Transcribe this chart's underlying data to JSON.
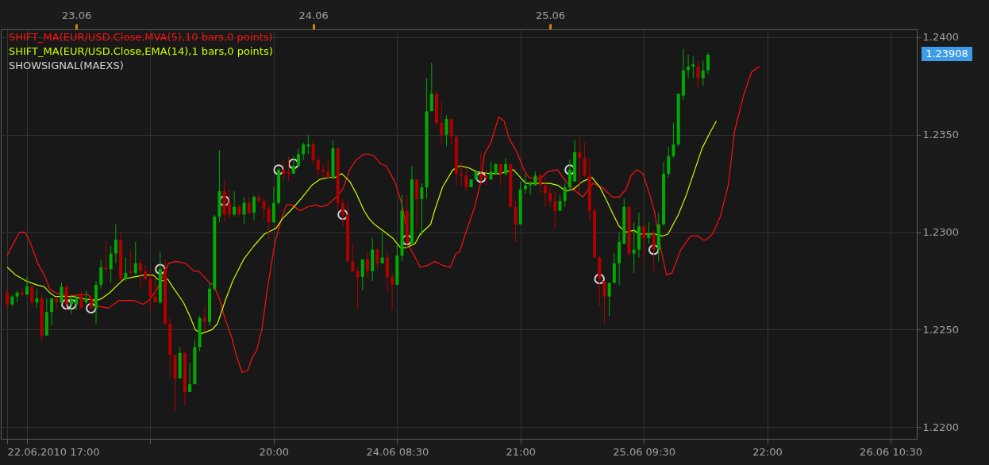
{
  "chart_data": {
    "type": "candlestick",
    "x": [
      "2010-06-22T17:00",
      "2010-06-22T17:30",
      "2010-06-22T18:00",
      "2010-06-22T18:30",
      "2010-06-22T19:00",
      "2010-06-22T19:30",
      "2010-06-22T20:00",
      "2010-06-22T20:30",
      "2010-06-22T21:00",
      "2010-06-22T21:30",
      "2010-06-22T22:00",
      "2010-06-22T22:30",
      "2010-06-22T23:00",
      "2010-06-22T23:30",
      "2010-06-23T00:00",
      "2010-06-23T00:30",
      "2010-06-23T01:00",
      "2010-06-23T01:30",
      "2010-06-23T02:00",
      "2010-06-23T02:30",
      "2010-06-23T03:00",
      "2010-06-23T03:30",
      "2010-06-23T04:00",
      "2010-06-23T04:30",
      "2010-06-23T05:00",
      "2010-06-23T05:30",
      "2010-06-23T06:00",
      "2010-06-23T06:30",
      "2010-06-23T07:00",
      "2010-06-23T07:30",
      "2010-06-23T08:00",
      "2010-06-23T08:30",
      "2010-06-23T09:00",
      "2010-06-23T09:30",
      "2010-06-23T10:00",
      "2010-06-23T10:30",
      "2010-06-23T11:00",
      "2010-06-23T11:30",
      "2010-06-23T12:00",
      "2010-06-23T12:30",
      "2010-06-23T13:00",
      "2010-06-23T13:30",
      "2010-06-23T14:00",
      "2010-06-23T14:30",
      "2010-06-23T15:00",
      "2010-06-23T15:30",
      "2010-06-23T16:00",
      "2010-06-23T16:30",
      "2010-06-23T17:00",
      "2010-06-23T17:30",
      "2010-06-23T18:00",
      "2010-06-23T18:30",
      "2010-06-23T19:00",
      "2010-06-23T19:30",
      "2010-06-23T20:00",
      "2010-06-23T20:30",
      "2010-06-23T21:00",
      "2010-06-23T21:30",
      "2010-06-23T22:00",
      "2010-06-23T22:30",
      "2010-06-23T23:00",
      "2010-06-23T23:30",
      "2010-06-24T00:00",
      "2010-06-24T00:30",
      "2010-06-24T01:00",
      "2010-06-24T01:30",
      "2010-06-24T02:00",
      "2010-06-24T02:30",
      "2010-06-24T03:00",
      "2010-06-24T03:30",
      "2010-06-24T04:00",
      "2010-06-24T04:30",
      "2010-06-24T05:00",
      "2010-06-24T05:30",
      "2010-06-24T06:00",
      "2010-06-24T06:30",
      "2010-06-24T07:00",
      "2010-06-24T07:30",
      "2010-06-24T08:00",
      "2010-06-24T08:30",
      "2010-06-24T09:00",
      "2010-06-24T09:30",
      "2010-06-24T10:00",
      "2010-06-24T10:30",
      "2010-06-24T11:00",
      "2010-06-24T11:30",
      "2010-06-24T12:00",
      "2010-06-24T12:30",
      "2010-06-24T13:00",
      "2010-06-24T13:30",
      "2010-06-24T14:00",
      "2010-06-24T14:30",
      "2010-06-24T15:00",
      "2010-06-24T15:30",
      "2010-06-24T16:00",
      "2010-06-24T16:30",
      "2010-06-24T17:00",
      "2010-06-24T17:30",
      "2010-06-24T18:00",
      "2010-06-24T18:30",
      "2010-06-24T19:00",
      "2010-06-24T19:30",
      "2010-06-24T20:00",
      "2010-06-24T20:30",
      "2010-06-24T21:00",
      "2010-06-24T21:30",
      "2010-06-24T22:00",
      "2010-06-24T22:30",
      "2010-06-24T23:00",
      "2010-06-24T23:30",
      "2010-06-25T00:00",
      "2010-06-25T00:30",
      "2010-06-25T01:00",
      "2010-06-25T01:30",
      "2010-06-25T02:00",
      "2010-06-25T02:30",
      "2010-06-25T03:00",
      "2010-06-25T03:30",
      "2010-06-25T04:00",
      "2010-06-25T04:30",
      "2010-06-25T05:00",
      "2010-06-25T05:30",
      "2010-06-25T06:00",
      "2010-06-25T06:30",
      "2010-06-25T07:00",
      "2010-06-25T07:30",
      "2010-06-25T08:00",
      "2010-06-25T08:30",
      "2010-06-25T09:00",
      "2010-06-25T09:30",
      "2010-06-25T10:00",
      "2010-06-25T10:30",
      "2010-06-25T11:00",
      "2010-06-25T11:30",
      "2010-06-25T12:00",
      "2010-06-25T12:30",
      "2010-06-25T13:00",
      "2010-06-25T13:30",
      "2010-06-25T14:00",
      "2010-06-25T14:30",
      "2010-06-25T15:00",
      "2010-06-25T15:30",
      "2010-06-25T16:00"
    ],
    "ohlc": [
      [
        1.2269,
        1.2271,
        1.2261,
        1.2263
      ],
      [
        1.2263,
        1.2268,
        1.2262,
        1.2267
      ],
      [
        1.2267,
        1.227,
        1.2264,
        1.2269
      ],
      [
        1.2269,
        1.2271,
        1.2267,
        1.2268
      ],
      [
        1.2268,
        1.2277,
        1.2268,
        1.2272
      ],
      [
        1.2272,
        1.2273,
        1.2262,
        1.2264
      ],
      [
        1.2264,
        1.2271,
        1.2261,
        1.2266
      ],
      [
        1.2266,
        1.2268,
        1.2244,
        1.2247
      ],
      [
        1.2247,
        1.2266,
        1.2247,
        1.2259
      ],
      [
        1.2259,
        1.2266,
        1.2252,
        1.2266
      ],
      [
        1.2266,
        1.2267,
        1.226,
        1.2264
      ],
      [
        1.2264,
        1.2274,
        1.2263,
        1.2272
      ],
      [
        1.2272,
        1.2273,
        1.226,
        1.2263
      ],
      [
        1.2263,
        1.2268,
        1.2258,
        1.2266
      ],
      [
        1.2263,
        1.2267,
        1.226,
        1.2266
      ],
      [
        1.2268,
        1.227,
        1.2261,
        1.2261
      ],
      [
        1.2264,
        1.227,
        1.2263,
        1.2266
      ],
      [
        1.2266,
        1.2268,
        1.226,
        1.2261
      ],
      [
        1.2261,
        1.2275,
        1.2253,
        1.2273
      ],
      [
        1.2273,
        1.2286,
        1.2271,
        1.2282
      ],
      [
        1.2282,
        1.2295,
        1.2279,
        1.2281
      ],
      [
        1.2281,
        1.2293,
        1.2274,
        1.2289
      ],
      [
        1.2289,
        1.2304,
        1.2284,
        1.2296
      ],
      [
        1.2296,
        1.23,
        1.2275,
        1.2276
      ],
      [
        1.2276,
        1.2287,
        1.2275,
        1.2279
      ],
      [
        1.228,
        1.2291,
        1.2278,
        1.2279
      ],
      [
        1.2279,
        1.2295,
        1.2278,
        1.2284
      ],
      [
        1.2284,
        1.2286,
        1.2271,
        1.228
      ],
      [
        1.228,
        1.2283,
        1.2275,
        1.2276
      ],
      [
        1.2276,
        1.2281,
        1.2259,
        1.2267
      ],
      [
        1.2267,
        1.2277,
        1.2264,
        1.2264
      ],
      [
        1.2264,
        1.229,
        1.2263,
        1.2281
      ],
      [
        1.2281,
        1.2286,
        1.2252,
        1.2253
      ],
      [
        1.2253,
        1.2256,
        1.2225,
        1.2237
      ],
      [
        1.2237,
        1.2237,
        1.2208,
        1.2225
      ],
      [
        1.2225,
        1.2241,
        1.2225,
        1.2238
      ],
      [
        1.2238,
        1.2239,
        1.2211,
        1.2218
      ],
      [
        1.2218,
        1.2233,
        1.2218,
        1.2222
      ],
      [
        1.2222,
        1.2245,
        1.2222,
        1.2241
      ],
      [
        1.2241,
        1.2257,
        1.2239,
        1.2256
      ],
      [
        1.2256,
        1.2262,
        1.2249,
        1.2254
      ],
      [
        1.2254,
        1.2274,
        1.2252,
        1.2271
      ],
      [
        1.2271,
        1.2309,
        1.227,
        1.2308
      ],
      [
        1.2308,
        1.2342,
        1.2305,
        1.2321
      ],
      [
        1.2321,
        1.2327,
        1.2305,
        1.2309
      ],
      [
        1.2315,
        1.2322,
        1.2307,
        1.2309
      ],
      [
        1.2309,
        1.2321,
        1.2308,
        1.2313
      ],
      [
        1.2313,
        1.2314,
        1.2308,
        1.2309
      ],
      [
        1.2309,
        1.2318,
        1.2304,
        1.2315
      ],
      [
        1.2315,
        1.2318,
        1.2309,
        1.231
      ],
      [
        1.231,
        1.2319,
        1.2306,
        1.2318
      ],
      [
        1.2318,
        1.2319,
        1.2315,
        1.2316
      ],
      [
        1.2316,
        1.2317,
        1.2307,
        1.2312
      ],
      [
        1.2312,
        1.2314,
        1.2296,
        1.2305
      ],
      [
        1.2305,
        1.2323,
        1.2305,
        1.2315
      ],
      [
        1.2315,
        1.2333,
        1.2314,
        1.2332
      ],
      [
        1.2332,
        1.2337,
        1.2326,
        1.233
      ],
      [
        1.2331,
        1.2339,
        1.2326,
        1.233
      ],
      [
        1.233,
        1.2339,
        1.233,
        1.2334
      ],
      [
        1.2334,
        1.2343,
        1.2334,
        1.234
      ],
      [
        1.234,
        1.2346,
        1.2337,
        1.2345
      ],
      [
        1.2344,
        1.235,
        1.234,
        1.2345
      ],
      [
        1.2345,
        1.2347,
        1.2335,
        1.2337
      ],
      [
        1.2337,
        1.2339,
        1.2328,
        1.2332
      ],
      [
        1.2332,
        1.2335,
        1.2328,
        1.2331
      ],
      [
        1.2331,
        1.2337,
        1.2328,
        1.2328
      ],
      [
        1.2328,
        1.2347,
        1.2327,
        1.2343
      ],
      [
        1.2343,
        1.2343,
        1.2311,
        1.2315
      ],
      [
        1.2315,
        1.2317,
        1.2303,
        1.2309
      ],
      [
        1.2309,
        1.2315,
        1.2285,
        1.2285
      ],
      [
        1.2285,
        1.2294,
        1.228,
        1.228
      ],
      [
        1.228,
        1.2282,
        1.2261,
        1.2277
      ],
      [
        1.2277,
        1.2286,
        1.227,
        1.2286
      ],
      [
        1.2286,
        1.229,
        1.2276,
        1.228
      ],
      [
        1.228,
        1.2297,
        1.2275,
        1.2291
      ],
      [
        1.2291,
        1.2292,
        1.2281,
        1.2284
      ],
      [
        1.2284,
        1.23,
        1.2284,
        1.2287
      ],
      [
        1.2287,
        1.229,
        1.2269,
        1.2277
      ],
      [
        1.2277,
        1.2279,
        1.226,
        1.2273
      ],
      [
        1.2273,
        1.2294,
        1.2273,
        1.2288
      ],
      [
        1.2288,
        1.2319,
        1.2285,
        1.2311
      ],
      [
        1.2311,
        1.2319,
        1.2292,
        1.2295
      ],
      [
        1.2294,
        1.2334,
        1.2294,
        1.2327
      ],
      [
        1.2327,
        1.2327,
        1.2302,
        1.2317
      ],
      [
        1.2317,
        1.2325,
        1.2298,
        1.2323
      ],
      [
        1.2323,
        1.2379,
        1.2317,
        1.2362
      ],
      [
        1.2362,
        1.2387,
        1.2362,
        1.2371
      ],
      [
        1.2371,
        1.2373,
        1.2355,
        1.2356
      ],
      [
        1.2356,
        1.2367,
        1.2345,
        1.235
      ],
      [
        1.235,
        1.236,
        1.2344,
        1.2358
      ],
      [
        1.2358,
        1.2358,
        1.2345,
        1.2349
      ],
      [
        1.2349,
        1.2349,
        1.2324,
        1.233
      ],
      [
        1.233,
        1.2336,
        1.2324,
        1.2329
      ],
      [
        1.2329,
        1.2333,
        1.2321,
        1.2323
      ],
      [
        1.2323,
        1.2327,
        1.2323,
        1.2327
      ],
      [
        1.2327,
        1.2332,
        1.2327,
        1.2331
      ],
      [
        1.233,
        1.2341,
        1.2324,
        1.2327
      ],
      [
        1.2329,
        1.2332,
        1.2324,
        1.2328
      ],
      [
        1.2327,
        1.2336,
        1.2327,
        1.2331
      ],
      [
        1.233,
        1.2335,
        1.233,
        1.2335
      ],
      [
        1.2335,
        1.2335,
        1.2324,
        1.233
      ],
      [
        1.233,
        1.2338,
        1.2329,
        1.2335
      ],
      [
        1.2335,
        1.2335,
        1.2312,
        1.2313
      ],
      [
        1.2313,
        1.2316,
        1.2295,
        1.2304
      ],
      [
        1.2304,
        1.2326,
        1.2304,
        1.2322
      ],
      [
        1.2322,
        1.233,
        1.232,
        1.2324
      ],
      [
        1.2324,
        1.2326,
        1.2319,
        1.2325
      ],
      [
        1.2324,
        1.2331,
        1.2324,
        1.2329
      ],
      [
        1.2329,
        1.233,
        1.232,
        1.2324
      ],
      [
        1.2324,
        1.2328,
        1.2313,
        1.232
      ],
      [
        1.232,
        1.2324,
        1.2313,
        1.2316
      ],
      [
        1.2316,
        1.2321,
        1.2302,
        1.2311
      ],
      [
        1.2311,
        1.2319,
        1.2311,
        1.2316
      ],
      [
        1.2316,
        1.2325,
        1.2313,
        1.2323
      ],
      [
        1.2323,
        1.2337,
        1.2322,
        1.2332
      ],
      [
        1.2326,
        1.2347,
        1.2326,
        1.2341
      ],
      [
        1.2341,
        1.2349,
        1.2319,
        1.2338
      ],
      [
        1.2338,
        1.2346,
        1.2328,
        1.2329
      ],
      [
        1.2329,
        1.2338,
        1.2306,
        1.2311
      ],
      [
        1.2311,
        1.2313,
        1.2287,
        1.2287
      ],
      [
        1.2287,
        1.2288,
        1.2262,
        1.2276
      ],
      [
        1.2275,
        1.2275,
        1.2253,
        1.2267
      ],
      [
        1.2267,
        1.2274,
        1.2257,
        1.2274
      ],
      [
        1.2274,
        1.2289,
        1.2274,
        1.2284
      ],
      [
        1.2284,
        1.23,
        1.2273,
        1.2295
      ],
      [
        1.2294,
        1.2317,
        1.2294,
        1.2313
      ],
      [
        1.2313,
        1.2313,
        1.2288,
        1.2289
      ],
      [
        1.2289,
        1.2305,
        1.2279,
        1.2291
      ],
      [
        1.2291,
        1.231,
        1.2287,
        1.2303
      ],
      [
        1.2303,
        1.2304,
        1.2286,
        1.2297
      ],
      [
        1.2297,
        1.2305,
        1.2294,
        1.2299
      ],
      [
        1.2299,
        1.2301,
        1.228,
        1.2291
      ],
      [
        1.2291,
        1.231,
        1.2285,
        1.2304
      ],
      [
        1.2304,
        1.2336,
        1.2303,
        1.233
      ],
      [
        1.233,
        1.2344,
        1.2328,
        1.2339
      ],
      [
        1.2339,
        1.2356,
        1.2338,
        1.2345
      ],
      [
        1.2345,
        1.2371,
        1.2344,
        1.2371
      ],
      [
        1.237,
        1.2394,
        1.2368,
        1.2383
      ],
      [
        1.2383,
        1.2391,
        1.2379,
        1.2385
      ],
      [
        1.2385,
        1.239,
        1.2379,
        1.2386
      ],
      [
        1.2385,
        1.2388,
        1.2374,
        1.2379
      ],
      [
        1.2379,
        1.2388,
        1.2375,
        1.2383
      ],
      [
        1.2383,
        1.2392,
        1.2381,
        1.2391
      ]
    ],
    "colors": [
      "#b00000",
      "#00aa00",
      "#00aa00",
      "#b00000",
      "#00aa00",
      "#b00000",
      "#00aa00",
      "#b00000",
      "#00aa00",
      "#00aa00",
      "#b00000",
      "#00aa00",
      "#b00000",
      "#00aa00",
      "#00aa00",
      "#b00000",
      "#00aa00",
      "#b00000",
      "#00aa00",
      "#00aa00",
      "#b00000",
      "#00aa00",
      "#00aa00",
      "#b00000",
      "#00aa00",
      "#b00000",
      "#00aa00",
      "#b00000",
      "#b00000",
      "#b00000",
      "#b00000",
      "#00aa00",
      "#b00000",
      "#b00000",
      "#b00000",
      "#00aa00",
      "#b00000",
      "#00aa00",
      "#00aa00",
      "#00aa00",
      "#b00000",
      "#00aa00",
      "#00aa00",
      "#00aa00",
      "#b00000",
      "#b00000",
      "#00aa00",
      "#b00000",
      "#00aa00",
      "#b00000",
      "#00aa00",
      "#b00000",
      "#b00000",
      "#b00000",
      "#00aa00",
      "#00aa00",
      "#b00000",
      "#b00000",
      "#00aa00",
      "#00aa00",
      "#00aa00",
      "#00aa00",
      "#b00000",
      "#b00000",
      "#b00000",
      "#b00000",
      "#00aa00",
      "#b00000",
      "#b00000",
      "#b00000",
      "#b00000",
      "#b00000",
      "#00aa00",
      "#b00000",
      "#00aa00",
      "#b00000",
      "#00aa00",
      "#b00000",
      "#b00000",
      "#00aa00",
      "#00aa00",
      "#b00000",
      "#00aa00",
      "#b00000",
      "#00aa00",
      "#00aa00",
      "#00aa00",
      "#b00000",
      "#b00000",
      "#00aa00",
      "#b00000",
      "#b00000",
      "#b00000",
      "#b00000",
      "#00aa00",
      "#00aa00",
      "#b00000",
      "#b00000",
      "#00aa00",
      "#00aa00",
      "#b00000",
      "#00aa00",
      "#b00000",
      "#b00000",
      "#00aa00",
      "#00aa00",
      "#00aa00",
      "#00aa00",
      "#b00000",
      "#b00000",
      "#b00000",
      "#b00000",
      "#00aa00",
      "#00aa00",
      "#00aa00",
      "#00aa00",
      "#b00000",
      "#b00000",
      "#b00000",
      "#b00000",
      "#b00000",
      "#b00000",
      "#00aa00",
      "#00aa00",
      "#00aa00",
      "#00aa00",
      "#b00000",
      "#00aa00",
      "#00aa00",
      "#b00000",
      "#00aa00",
      "#b00000",
      "#00aa00",
      "#00aa00",
      "#00aa00",
      "#00aa00",
      "#00aa00",
      "#00aa00",
      "#00aa00",
      "#00aa00",
      "#b00000",
      "#00aa00",
      "#00aa00"
    ],
    "series": [
      {
        "name": "SHIFT_MA(EUR/USD.Close,MVA(5),10 bars,0 points)",
        "type": "line",
        "color": "#ff1010",
        "x": [
          "2010-06-22T17:00",
          "2010-06-22T17:18",
          "2010-06-22T18:15",
          "2010-06-22T18:48",
          "2010-06-22T19:18",
          "2010-06-22T20:06",
          "2010-06-22T20:45",
          "2010-06-22T21:18",
          "2010-06-22T21:51",
          "2010-06-22T23:09",
          "2010-06-23T00:30",
          "2010-06-23T01:09",
          "2010-06-23T02:12",
          "2010-06-23T03:15",
          "2010-06-23T04:21",
          "2010-06-23T05:48",
          "2010-06-23T06:48",
          "2010-06-23T07:21",
          "2010-06-23T08:12",
          "2010-06-23T08:39",
          "2010-06-23T09:21",
          "2010-06-23T10:03",
          "2010-06-23T11:06",
          "2010-06-23T11:54",
          "2010-06-23T12:24",
          "2010-06-23T13:30",
          "2010-06-23T13:54",
          "2010-06-23T14:33",
          "2010-06-23T15:06",
          "2010-06-23T15:45",
          "2010-06-23T16:15",
          "2010-06-23T16:48",
          "2010-06-23T17:21",
          "2010-06-23T17:51",
          "2010-06-23T18:15",
          "2010-06-23T18:48",
          "2010-06-23T19:18",
          "2010-06-23T20:06",
          "2010-06-23T20:48",
          "2010-06-23T21:18",
          "2010-06-23T21:51",
          "2010-06-23T22:39",
          "2010-06-23T23:27",
          "2010-06-24T00:18",
          "2010-06-24T00:45",
          "2010-06-24T01:27",
          "2010-06-24T02:21",
          "2010-06-24T03:00",
          "2010-06-24T03:42",
          "2010-06-24T04:21",
          "2010-06-24T05:09",
          "2010-06-24T05:39",
          "2010-06-24T06:12",
          "2010-06-24T06:51",
          "2010-06-24T07:24",
          "2010-06-24T08:21",
          "2010-06-24T09:00",
          "2010-06-24T09:48",
          "2010-06-24T10:51",
          "2010-06-24T11:39",
          "2010-06-24T12:18",
          "2010-06-24T13:06",
          "2010-06-24T13:54",
          "2010-06-24T14:27",
          "2010-06-24T14:51",
          "2010-06-24T15:21",
          "2010-06-24T16:18",
          "2010-06-24T16:57",
          "2010-06-24T17:21",
          "2010-06-24T18:00",
          "2010-06-24T18:48",
          "2010-06-24T19:21",
          "2010-06-24T19:51",
          "2010-06-24T20:39",
          "2010-06-24T21:21",
          "2010-06-24T21:51",
          "2010-06-24T22:57",
          "2010-06-24T23:45",
          "2010-06-25T00:45",
          "2010-06-25T01:36",
          "2010-06-25T02:21",
          "2010-06-25T03:18",
          "2010-06-25T04:21",
          "2010-06-25T05:18",
          "2010-06-25T06:18",
          "2010-06-25T07:00",
          "2010-06-25T07:42",
          "2010-06-25T08:12",
          "2010-06-25T08:48",
          "2010-06-25T09:24",
          "2010-06-25T10:03",
          "2010-06-25T10:36",
          "2010-06-25T11:09",
          "2010-06-25T11:48",
          "2010-06-25T12:21",
          "2010-06-25T13:15",
          "2010-06-25T14:15",
          "2010-06-25T15:00",
          "2010-06-25T15:30",
          "2010-06-25T15:48",
          "2010-06-25T16:27",
          "2010-06-25T17:15",
          "2010-06-25T18:03",
          "2010-06-25T18:42",
          "2010-06-25T19:36",
          "2010-06-25T20:24",
          "2010-06-25T21:12"
        ],
        "values": [
          1.2288,
          1.2291,
          1.23,
          1.23,
          1.2295,
          1.2284,
          1.2278,
          1.2271,
          1.2269,
          1.2267,
          1.2268,
          1.2268,
          1.2262,
          1.2261,
          1.2265,
          1.2265,
          1.2263,
          1.2265,
          1.2271,
          1.2276,
          1.2284,
          1.2285,
          1.2284,
          1.228,
          1.228,
          1.2274,
          1.2273,
          1.2265,
          1.2255,
          1.2246,
          1.2236,
          1.2228,
          1.2229,
          1.2236,
          1.2239,
          1.225,
          1.2269,
          1.2294,
          1.2307,
          1.2314,
          1.2314,
          1.2311,
          1.2313,
          1.2314,
          1.2313,
          1.2314,
          1.2318,
          1.2322,
          1.2332,
          1.2337,
          1.234,
          1.234,
          1.2339,
          1.2335,
          1.2334,
          1.2325,
          1.2314,
          1.2292,
          1.2282,
          1.2283,
          1.2285,
          1.2283,
          1.2282,
          1.2289,
          1.229,
          1.2298,
          1.2312,
          1.2325,
          1.234,
          1.2346,
          1.2359,
          1.2357,
          1.2348,
          1.2341,
          1.2332,
          1.2328,
          1.2327,
          1.2331,
          1.2332,
          1.2326,
          1.2322,
          1.2318,
          1.2325,
          1.2323,
          1.2318,
          1.2318,
          1.2322,
          1.2329,
          1.2332,
          1.233,
          1.232,
          1.231,
          1.2293,
          1.2278,
          1.2279,
          1.2291,
          1.2298,
          1.2298,
          1.2296,
          1.2296,
          1.2299,
          1.2308,
          1.2324,
          1.2352,
          1.237,
          1.2382,
          1.2385
        ]
      },
      {
        "name": "SHIFT_MA(EUR/USD.Close,EMA(14),1 bars,0 points)",
        "type": "line",
        "color": "#c8ff00",
        "x": [
          "2010-06-22T17:00",
          "2010-06-22T17:51",
          "2010-06-22T18:54",
          "2010-06-22T19:57",
          "2010-06-22T20:45",
          "2010-06-22T21:18",
          "2010-06-22T21:51",
          "2010-06-22T22:54",
          "2010-06-22T23:42",
          "2010-06-23T00:30",
          "2010-06-23T02:06",
          "2010-06-23T02:36",
          "2010-06-23T03:24",
          "2010-06-23T04:12",
          "2010-06-23T04:51",
          "2010-06-23T05:48",
          "2010-06-23T06:51",
          "2010-06-23T07:48",
          "2010-06-23T08:12",
          "2010-06-23T08:42",
          "2010-06-23T09:15",
          "2010-06-23T09:45",
          "2010-06-23T10:51",
          "2010-06-23T11:30",
          "2010-06-23T12:03",
          "2010-06-23T12:42",
          "2010-06-23T13:45",
          "2010-06-23T14:18",
          "2010-06-23T15:06",
          "2010-06-23T15:51",
          "2010-06-23T16:57",
          "2010-06-23T18:00",
          "2010-06-23T19:03",
          "2010-06-23T19:51",
          "2010-06-23T20:15",
          "2010-06-23T20:54",
          "2010-06-23T21:42",
          "2010-06-23T22:45",
          "2010-06-23T23:51",
          "2010-06-24T00:39",
          "2010-06-24T01:33",
          "2010-06-24T02:12",
          "2010-06-24T02:54",
          "2010-06-24T03:42",
          "2010-06-24T04:21",
          "2010-06-24T05:09",
          "2010-06-24T05:39",
          "2010-06-24T06:12",
          "2010-06-24T07:00",
          "2010-06-24T08:03",
          "2010-06-24T08:51",
          "2010-06-24T09:24",
          "2010-06-24T10:18",
          "2010-06-24T10:51",
          "2010-06-24T11:54",
          "2010-06-24T12:18",
          "2010-06-24T13:06",
          "2010-06-24T14:09",
          "2010-06-24T14:51",
          "2010-06-24T15:45",
          "2010-06-24T16:33",
          "2010-06-24T17:54",
          "2010-06-24T19:00",
          "2010-06-24T19:30",
          "2010-06-24T20:18",
          "2010-06-24T21:21",
          "2010-06-24T21:36",
          "2010-06-24T22:57",
          "2010-06-25T00:00",
          "2010-06-25T00:48",
          "2010-06-25T01:36",
          "2010-06-25T02:21",
          "2010-06-25T03:18",
          "2010-06-25T04:15",
          "2010-06-25T05:03",
          "2010-06-25T05:51",
          "2010-06-25T06:30",
          "2010-06-25T07:00",
          "2010-06-25T07:42",
          "2010-06-25T08:30",
          "2010-06-25T09:00",
          "2010-06-25T10:36",
          "2010-06-25T11:24",
          "2010-06-25T11:57",
          "2010-06-25T13:00",
          "2010-06-25T13:48",
          "2010-06-25T14:36",
          "2010-06-25T15:24",
          "2010-06-25T16:12",
          "2010-06-25T16:51"
        ],
        "values": [
          1.2282,
          1.2278,
          1.2275,
          1.2273,
          1.2272,
          1.2269,
          1.2267,
          1.2267,
          1.2267,
          1.2266,
          1.2265,
          1.2266,
          1.2269,
          1.2273,
          1.2276,
          1.2277,
          1.2278,
          1.2278,
          1.2276,
          1.2275,
          1.2276,
          1.2272,
          1.2264,
          1.2257,
          1.225,
          1.2248,
          1.225,
          1.2253,
          1.2265,
          1.2275,
          1.2286,
          1.2293,
          1.2299,
          1.2301,
          1.2302,
          1.2307,
          1.2311,
          1.2317,
          1.2324,
          1.2327,
          1.2328,
          1.2328,
          1.233,
          1.2326,
          1.232,
          1.2311,
          1.2307,
          1.2304,
          1.2301,
          1.2297,
          1.2292,
          1.2292,
          1.2294,
          1.2299,
          1.2304,
          1.2311,
          1.2323,
          1.2332,
          1.2334,
          1.2333,
          1.2331,
          1.233,
          1.233,
          1.2331,
          1.2332,
          1.2326,
          1.2325,
          1.2325,
          1.2325,
          1.2324,
          1.2321,
          1.2322,
          1.2326,
          1.2328,
          1.2323,
          1.2315,
          1.2308,
          1.2303,
          1.23,
          1.2301,
          1.2299,
          1.2299,
          1.2298,
          1.2299,
          1.2309,
          1.2319,
          1.2331,
          1.2343,
          1.2351,
          1.2357
        ]
      },
      {
        "name": "SHOWSIGNAL(MAEXS)",
        "type": "scatter",
        "marker": "circle",
        "color": "#d4d4d4",
        "x": [
          "2010-06-22T23:00",
          "2010-06-22T23:30",
          "2010-06-23T01:30",
          "2010-06-23T08:30",
          "2010-06-23T15:00",
          "2010-06-23T20:30",
          "2010-06-23T22:00",
          "2010-06-24T03:00",
          "2010-06-24T09:30",
          "2010-06-24T17:00",
          "2010-06-25T02:00",
          "2010-06-25T05:00",
          "2010-06-25T10:30"
        ],
        "values": [
          1.2263,
          1.2263,
          1.2261,
          1.2281,
          1.2316,
          1.2332,
          1.2335,
          1.2309,
          1.2296,
          1.2328,
          1.2332,
          1.2276,
          1.2291
        ]
      }
    ],
    "xlim": [
      "2010-06-22T16:45",
      "2010-06-26T12:45"
    ],
    "xticks": [
      {
        "value": "2010-06-22T17:00",
        "label": "22.06.2010 17:00"
      },
      {
        "value": "2010-06-22T19:00",
        "label": null
      },
      {
        "value": "2010-06-23T07:30",
        "label": null
      },
      {
        "value": "2010-06-23T20:00",
        "label": "20:00"
      },
      {
        "value": "2010-06-24T08:30",
        "label": "24.06 08:30"
      },
      {
        "value": "2010-06-24T21:00",
        "label": "21:00"
      },
      {
        "value": "2010-06-25T09:30",
        "label": "25.06 09:30"
      },
      {
        "value": "2010-06-25T22:00",
        "label": "22:00"
      },
      {
        "value": "2010-06-26T10:30",
        "label": "26.06 10:30"
      }
    ],
    "x2lim": [
      "2010-06-22T16:45",
      "2010-06-26T12:45"
    ],
    "x2ticks": [
      {
        "value": "2010-06-23T00:00",
        "label": "23.06"
      },
      {
        "value": "2010-06-24T00:00",
        "label": "24.06"
      },
      {
        "value": "2010-06-25T00:00",
        "label": "25.06"
      }
    ],
    "ylim": [
      1.2194,
      1.2404
    ],
    "yticks": [
      {
        "value": 1.22,
        "label": "1.2200"
      },
      {
        "value": 1.225,
        "label": "1.2250"
      },
      {
        "value": 1.23,
        "label": "1.2300"
      },
      {
        "value": 1.235,
        "label": "1.2350"
      },
      {
        "value": 1.24,
        "label": "1.2400"
      }
    ],
    "grid": true,
    "legend": "top left",
    "annotations": [
      "1.23908"
    ]
  }
}
